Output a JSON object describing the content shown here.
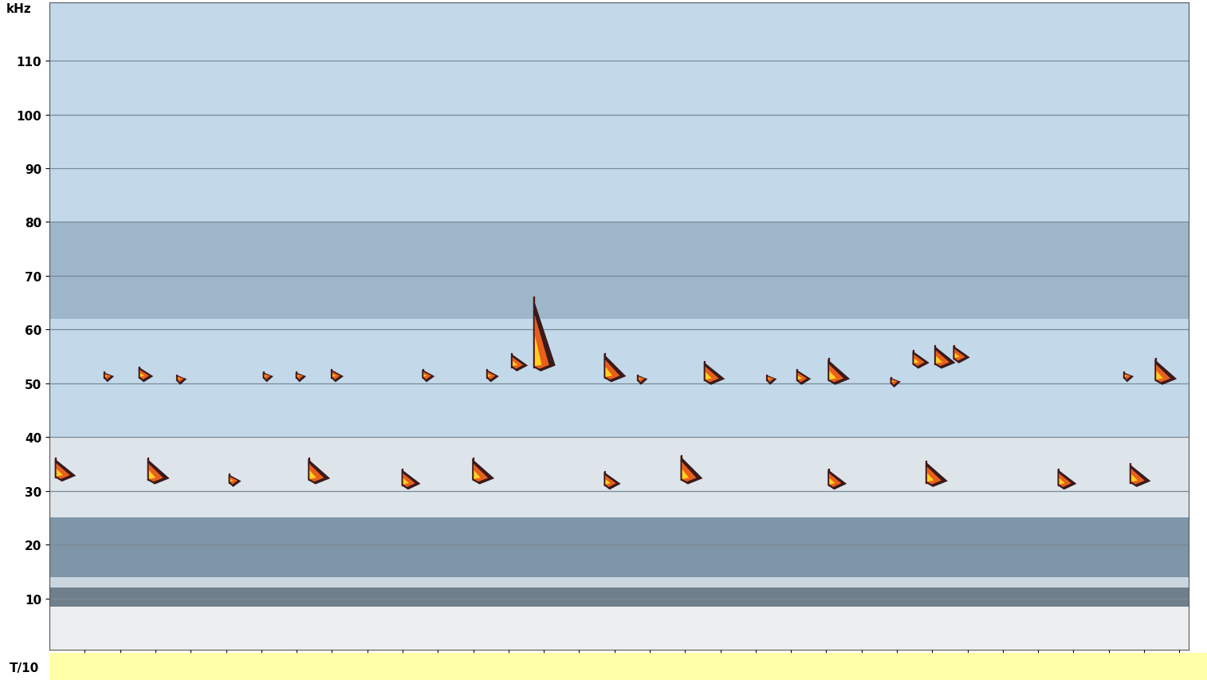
{
  "chart_data": {
    "type": "spectrogram",
    "y_label": "kHz",
    "x_label": "T/10",
    "xlim": [
      0,
      3.227
    ],
    "ylim": [
      0.5,
      120.8
    ],
    "xticks": [
      0.1,
      0.2,
      0.3,
      0.4,
      0.5,
      0.6,
      0.7,
      0.8,
      0.9,
      1.0,
      1.1,
      1.2,
      1.3,
      1.4,
      1.5,
      1.6,
      1.7,
      1.8,
      1.9,
      2.0,
      2.1,
      2.2,
      2.3,
      2.4,
      2.5,
      2.6,
      2.7,
      2.8,
      2.9,
      3.0,
      3.1,
      3.2
    ],
    "yticks": [
      10,
      20,
      30,
      40,
      50,
      60,
      70,
      80,
      90,
      100,
      110
    ],
    "grid": true,
    "bands": [
      {
        "low": 0.5,
        "high": 8.5,
        "color": "#eceff1"
      },
      {
        "low": 8.5,
        "high": 12,
        "color": "#6f7f8c"
      },
      {
        "low": 12,
        "high": 14,
        "color": "#c9d6e0"
      },
      {
        "low": 14,
        "high": 25,
        "color": "#7f95a8"
      },
      {
        "low": 25,
        "high": 40,
        "color": "#dde4ea"
      },
      {
        "low": 40,
        "high": 62,
        "color": "#c3d9ea"
      },
      {
        "low": 62,
        "high": 80,
        "color": "#9db6ca"
      },
      {
        "low": 80,
        "high": 120.8,
        "color": "#c3d9ea"
      }
    ],
    "series": [
      {
        "color": "#e8601c",
        "x": [
          0.018,
          0.28,
          0.51,
          0.735,
          1.0,
          1.2,
          1.573,
          1.79,
          2.207,
          2.484,
          2.858,
          3.062
        ],
        "values": [
          32.5,
          32,
          31.5,
          32,
          31,
          32,
          31,
          32,
          31,
          31.5,
          31,
          31.5
        ],
        "top": [
          36,
          36,
          33,
          36,
          34,
          36,
          33.5,
          36.5,
          34,
          35.5,
          34,
          35
        ]
      },
      {
        "color": "#e8601c",
        "x": [
          0.156,
          0.255,
          0.362,
          0.607,
          0.7,
          0.8,
          1.058,
          1.24,
          1.31,
          1.373,
          1.573,
          1.667,
          1.856,
          2.033,
          2.118,
          2.207,
          2.384,
          2.447,
          2.509,
          2.562,
          3.044,
          3.133
        ],
        "values": [
          51,
          51,
          50.5,
          51,
          51,
          51,
          51,
          51,
          53,
          53,
          51,
          50.5,
          50.5,
          50.5,
          50.5,
          50.5,
          50,
          53.5,
          53.5,
          54.5,
          51,
          50.5
        ],
        "top": [
          52,
          53,
          51.5,
          52,
          52,
          52.5,
          52.5,
          52.5,
          55.5,
          66,
          55.5,
          51.5,
          54,
          51.5,
          52.5,
          54.5,
          51,
          56,
          57,
          57,
          52,
          54.5
        ]
      }
    ]
  }
}
